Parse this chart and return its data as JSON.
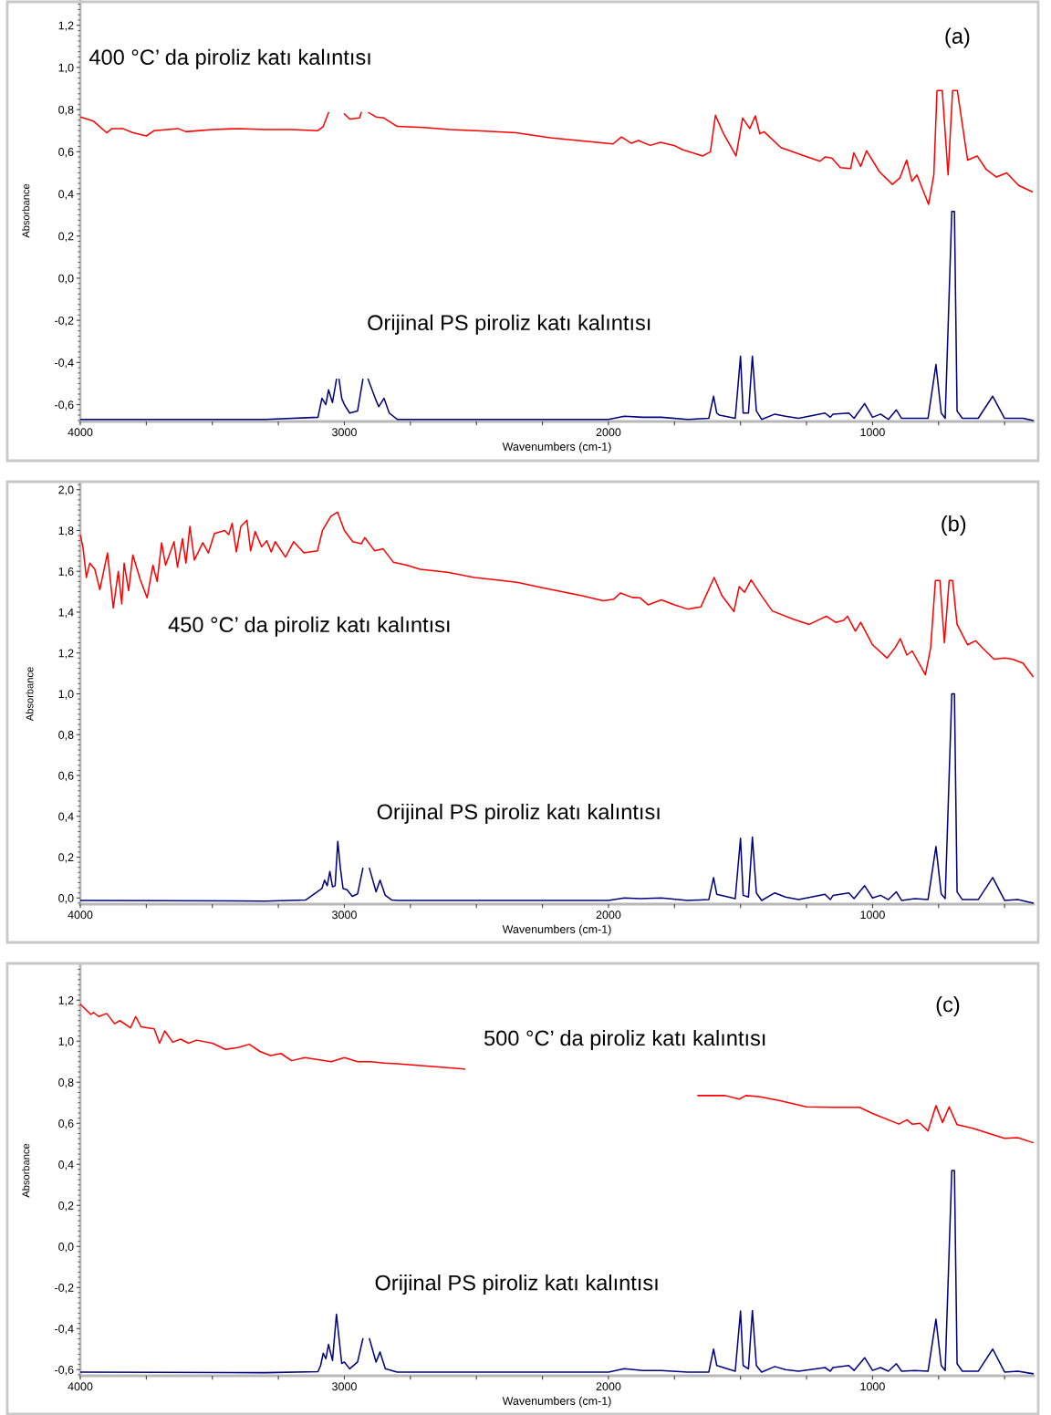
{
  "chart_data": [
    {
      "type": "line",
      "xlabel": "Wavenumbers (cm-1)",
      "ylabel": "Absorbance",
      "annotations": [
        "(a)"
      ],
      "xlim": [
        4000,
        390
      ],
      "ylim": [
        -0.68,
        1.32
      ],
      "xticks": [
        4000,
        {
          "value": 3750,
          "label": null
        },
        {
          "value": 3500,
          "label": null
        },
        {
          "value": 3250,
          "label": null
        },
        3000,
        {
          "value": 2750,
          "label": null
        },
        {
          "value": 2500,
          "label": null
        },
        {
          "value": 2250,
          "label": null
        },
        2000,
        {
          "value": 1750,
          "label": null
        },
        {
          "value": 1500,
          "label": null
        },
        {
          "value": 1250,
          "label": null
        },
        1000,
        {
          "value": 750,
          "label": null
        },
        {
          "value": 500,
          "label": null
        }
      ],
      "yticks": [
        {
          "value": -0.6,
          "label": "-0,6"
        },
        {
          "value": -0.4,
          "label": "-0,4"
        },
        {
          "value": -0.2,
          "label": "-0,2"
        },
        {
          "value": 0.0,
          "label": "0,0"
        },
        {
          "value": 0.2,
          "label": "0,2"
        },
        {
          "value": 0.4,
          "label": "0,4"
        },
        {
          "value": 0.6,
          "label": "0,6"
        },
        {
          "value": 0.8,
          "label": "0,8"
        },
        {
          "value": 1.0,
          "label": "1,0"
        },
        {
          "value": 1.2,
          "label": "1,2"
        }
      ],
      "series": [
        {
          "name": "400 °C’ da piroliz katı kalıntısı",
          "color": "#ff0000",
          "x": [
            4000,
            3950,
            3900,
            3880,
            3840,
            3800,
            3750,
            3720,
            3630,
            3600,
            3500,
            3400,
            3300,
            3200,
            3100,
            3080,
            3060,
            3040,
            3000,
            2980,
            2943,
            2936,
            2920,
            2908,
            2880,
            2850,
            2800,
            2700,
            2600,
            2500,
            2350,
            2221,
            1983,
            1951,
            1913,
            1887,
            1842,
            1803,
            1752,
            1720,
            1643,
            1614,
            1595,
            1566,
            1517,
            1492,
            1465,
            1444,
            1427,
            1411,
            1347,
            1257,
            1199,
            1180,
            1154,
            1122,
            1083,
            1071,
            1045,
            1023,
            974,
            925,
            897,
            871,
            851,
            832,
            788,
            768,
            756,
            736,
            714,
            697,
            679,
            640,
            604,
            569,
            531,
            492,
            447,
            396
          ],
          "values": [
            0.765,
            0.745,
            0.69,
            0.71,
            0.71,
            0.69,
            0.675,
            0.7,
            0.71,
            0.695,
            0.705,
            0.71,
            0.705,
            0.705,
            0.7,
            0.72,
            0.785,
            null,
            0.78,
            0.755,
            0.76,
            0.785,
            null,
            0.785,
            0.765,
            0.76,
            0.72,
            0.715,
            0.705,
            0.7,
            0.69,
            0.666,
            0.637,
            0.67,
            0.64,
            0.653,
            0.63,
            0.645,
            0.63,
            0.61,
            0.58,
            0.6,
            0.773,
            0.69,
            0.58,
            0.76,
            0.71,
            0.77,
            0.685,
            0.695,
            0.62,
            0.58,
            0.555,
            0.575,
            0.57,
            0.525,
            0.52,
            0.595,
            0.53,
            0.605,
            0.505,
            0.445,
            0.475,
            0.56,
            0.46,
            0.49,
            0.35,
            0.49,
            0.89,
            0.89,
            0.49,
            0.89,
            0.89,
            0.56,
            0.58,
            0.515,
            0.48,
            0.5,
            0.44,
            0.41
          ]
        },
        {
          "name": "Orijinal PS piroliz katı kalıntısı",
          "color": "#000080",
          "x": [
            4000,
            3300,
            3100,
            3085,
            3070,
            3060,
            3045,
            3030,
            3025,
            3020,
            3010,
            3000,
            2980,
            2950,
            2930,
            2920,
            2910,
            2880,
            2870,
            2850,
            2830,
            2800,
            2400,
            2000,
            1940,
            1870,
            1800,
            1700,
            1620,
            1602,
            1590,
            1580,
            1520,
            1500,
            1490,
            1470,
            1455,
            1440,
            1420,
            1370,
            1330,
            1280,
            1180,
            1160,
            1150,
            1090,
            1070,
            1030,
            1000,
            970,
            940,
            910,
            890,
            840,
            790,
            760,
            740,
            725,
            700,
            690,
            680,
            660,
            600,
            545,
            500,
            430,
            393
          ],
          "values": [
            -0.67,
            -0.67,
            -0.66,
            -0.57,
            -0.6,
            -0.53,
            -0.59,
            -0.48,
            null,
            -0.48,
            -0.57,
            -0.6,
            -0.64,
            -0.63,
            -0.48,
            null,
            -0.48,
            -0.58,
            -0.61,
            -0.57,
            -0.64,
            -0.67,
            -0.67,
            -0.67,
            -0.655,
            -0.66,
            -0.66,
            -0.67,
            -0.665,
            -0.56,
            -0.64,
            -0.65,
            -0.665,
            -0.37,
            -0.64,
            -0.64,
            -0.37,
            -0.63,
            -0.67,
            -0.645,
            -0.655,
            -0.665,
            -0.64,
            -0.66,
            -0.645,
            -0.64,
            -0.665,
            -0.595,
            -0.66,
            -0.645,
            -0.67,
            -0.625,
            -0.665,
            -0.665,
            -0.665,
            -0.41,
            -0.64,
            -0.665,
            0.317,
            0.317,
            -0.63,
            -0.665,
            -0.665,
            -0.56,
            -0.665,
            -0.665,
            -0.675
          ]
        }
      ]
    },
    {
      "type": "line",
      "xlabel": "Wavenumbers (cm-1)",
      "ylabel": "Absorbance",
      "annotations": [
        "(b)"
      ],
      "xlim": [
        4000,
        390
      ],
      "ylim": [
        -0.03,
        2.03
      ],
      "xticks": [
        4000,
        {
          "value": 3750,
          "label": null
        },
        {
          "value": 3500,
          "label": null
        },
        {
          "value": 3250,
          "label": null
        },
        3000,
        {
          "value": 2750,
          "label": null
        },
        {
          "value": 2500,
          "label": null
        },
        {
          "value": 2250,
          "label": null
        },
        2000,
        {
          "value": 1750,
          "label": null
        },
        {
          "value": 1500,
          "label": null
        },
        {
          "value": 1250,
          "label": null
        },
        1000,
        {
          "value": 750,
          "label": null
        },
        {
          "value": 500,
          "label": null
        }
      ],
      "yticks": [
        {
          "value": 0.0,
          "label": "0,0"
        },
        {
          "value": 0.2,
          "label": "0,2"
        },
        {
          "value": 0.4,
          "label": "0,4"
        },
        {
          "value": 0.6,
          "label": "0,6"
        },
        {
          "value": 0.8,
          "label": "0,8"
        },
        {
          "value": 1.0,
          "label": "1,0"
        },
        {
          "value": 1.2,
          "label": "1,2"
        },
        {
          "value": 1.4,
          "label": "1,4"
        },
        {
          "value": 1.6,
          "label": "1,6"
        },
        {
          "value": 1.8,
          "label": "1,8"
        },
        {
          "value": 2.0,
          "label": "2,0"
        }
      ],
      "series": [
        {
          "name": "450 °C’ da piroliz katı kalıntısı",
          "color": "#ff0000",
          "x": [
            4000,
            3990,
            3977,
            3964,
            3945,
            3926,
            3897,
            3875,
            3856,
            3843,
            3834,
            3817,
            3801,
            3773,
            3747,
            3725,
            3709,
            3692,
            3677,
            3645,
            3632,
            3613,
            3600,
            3585,
            3568,
            3536,
            3515,
            3492,
            3453,
            3438,
            3425,
            3409,
            3392,
            3369,
            3355,
            3338,
            3313,
            3294,
            3277,
            3262,
            3223,
            3192,
            3153,
            3102,
            3083,
            3051,
            3026,
            3000,
            2968,
            2936,
            2923,
            2885,
            2853,
            2815,
            2764,
            2713,
            2610,
            2508,
            2406,
            2342,
            2250,
            2100,
            2020,
            1980,
            1955,
            1910,
            1880,
            1850,
            1800,
            1750,
            1700,
            1650,
            1600,
            1570,
            1525,
            1505,
            1485,
            1460,
            1420,
            1380,
            1300,
            1240,
            1200,
            1175,
            1140,
            1110,
            1095,
            1065,
            1045,
            1000,
            945,
            915,
            895,
            870,
            850,
            800,
            780,
            762,
            745,
            728,
            710,
            697,
            680,
            640,
            610,
            580,
            540,
            500,
            470,
            430,
            393
          ],
          "values": [
            1.777,
            1.72,
            1.57,
            1.64,
            1.61,
            1.51,
            1.69,
            1.42,
            1.6,
            1.44,
            1.64,
            1.505,
            1.68,
            1.56,
            1.47,
            1.63,
            1.55,
            1.74,
            1.63,
            1.745,
            1.62,
            1.76,
            1.64,
            1.82,
            1.655,
            1.74,
            1.69,
            1.785,
            1.8,
            1.78,
            1.835,
            1.695,
            1.82,
            1.85,
            1.7,
            1.795,
            1.72,
            1.75,
            1.695,
            1.745,
            1.67,
            1.745,
            1.69,
            1.7,
            1.8,
            1.87,
            1.89,
            1.8,
            1.745,
            1.735,
            1.765,
            1.7,
            1.71,
            1.645,
            1.63,
            1.61,
            1.595,
            1.57,
            1.555,
            1.545,
            1.52,
            1.48,
            1.456,
            1.464,
            1.494,
            1.472,
            1.47,
            1.436,
            1.46,
            1.436,
            1.415,
            1.426,
            1.57,
            1.48,
            1.403,
            1.525,
            1.497,
            1.558,
            1.48,
            1.406,
            1.365,
            1.34,
            1.365,
            1.38,
            1.35,
            1.36,
            1.38,
            1.307,
            1.35,
            1.24,
            1.175,
            1.225,
            1.27,
            1.19,
            1.21,
            1.093,
            1.225,
            1.555,
            1.555,
            1.25,
            1.555,
            1.555,
            1.34,
            1.24,
            1.26,
            1.22,
            1.17,
            1.175,
            1.17,
            1.15,
            1.085
          ]
        },
        {
          "name": "Orijinal PS piroliz katı kalıntısı",
          "color": "#000080",
          "x": [
            4000,
            3300,
            3147,
            3085,
            3075,
            3065,
            3055,
            3045,
            3035,
            3025,
            3015,
            3005,
            2990,
            2970,
            2950,
            2930,
            2918,
            2905,
            2880,
            2865,
            2845,
            2820,
            2800,
            2000,
            1940,
            1880,
            1800,
            1700,
            1620,
            1602,
            1590,
            1520,
            1500,
            1490,
            1470,
            1455,
            1440,
            1420,
            1370,
            1330,
            1280,
            1180,
            1160,
            1150,
            1090,
            1070,
            1030,
            1000,
            970,
            940,
            910,
            890,
            840,
            790,
            760,
            740,
            725,
            700,
            690,
            680,
            660,
            600,
            545,
            500,
            450,
            393
          ],
          "values": [
            -0.012,
            -0.015,
            -0.01,
            0.046,
            0.087,
            0.06,
            0.13,
            0.055,
            0.06,
            0.277,
            0.145,
            0.046,
            0.04,
            0.008,
            0.02,
            0.145,
            null,
            0.145,
            0.03,
            0.087,
            0.013,
            -0.01,
            -0.012,
            -0.012,
            0.0,
            -0.003,
            0.0,
            -0.012,
            -0.008,
            0.1,
            0.018,
            -0.003,
            0.293,
            0.013,
            0.005,
            0.298,
            0.025,
            -0.012,
            0.025,
            0.005,
            -0.008,
            0.018,
            -0.008,
            0.012,
            0.025,
            -0.003,
            0.06,
            0.0,
            0.013,
            -0.008,
            0.03,
            -0.012,
            -0.003,
            -0.008,
            0.252,
            0.02,
            -0.003,
            1.0,
            1.0,
            0.03,
            -0.008,
            -0.008,
            0.1,
            -0.012,
            -0.008,
            -0.025
          ]
        }
      ]
    },
    {
      "type": "line",
      "xlabel": "Wavenumbers (cm-1)",
      "ylabel": "Absorbance",
      "annotations": [
        "(c)"
      ],
      "xlim": [
        4000,
        390
      ],
      "ylim": [
        -0.63,
        1.37
      ],
      "xticks": [
        4000,
        {
          "value": 3750,
          "label": null
        },
        {
          "value": 3500,
          "label": null
        },
        {
          "value": 3250,
          "label": null
        },
        3000,
        {
          "value": 2750,
          "label": null
        },
        {
          "value": 2500,
          "label": null
        },
        {
          "value": 2250,
          "label": null
        },
        2000,
        {
          "value": 1750,
          "label": null
        },
        {
          "value": 1500,
          "label": null
        },
        {
          "value": 1250,
          "label": null
        },
        1000,
        {
          "value": 750,
          "label": null
        },
        {
          "value": 500,
          "label": null
        }
      ],
      "yticks": [
        {
          "value": -0.6,
          "label": "-0,6"
        },
        {
          "value": -0.4,
          "label": "-0,4"
        },
        {
          "value": -0.2,
          "label": "-0,2"
        },
        {
          "value": 0.0,
          "label": "0,0"
        },
        {
          "value": 0.2,
          "label": "0,2"
        },
        {
          "value": 0.4,
          "label": "0,4"
        },
        {
          "value": 0.6,
          "label": "0,6"
        },
        {
          "value": 0.8,
          "label": "0,8"
        },
        {
          "value": 1.0,
          "label": "1,0"
        },
        {
          "value": 1.2,
          "label": "1,2"
        }
      ],
      "series": [
        {
          "name": "500 °C’ da piroliz katı kalıntısı",
          "color": "#ff0000",
          "x": [
            4000,
            3960,
            3950,
            3930,
            3900,
            3870,
            3850,
            3810,
            3790,
            3770,
            3720,
            3700,
            3680,
            3650,
            3620,
            3590,
            3560,
            3500,
            3450,
            3400,
            3360,
            3320,
            3280,
            3240,
            3200,
            3150,
            3100,
            3050,
            3000,
            2950,
            2900,
            2850,
            2800,
            2700,
            2600,
            2545,
            2200,
            1661,
            1597,
            1558,
            1505,
            1480,
            1430,
            1350,
            1250,
            1150,
            1050,
            1000,
            900,
            870,
            850,
            820,
            790,
            760,
            735,
            710,
            680,
            620,
            550,
            500,
            450,
            393
          ],
          "values": [
            1.18,
            1.13,
            1.14,
            1.12,
            1.135,
            1.085,
            1.1,
            1.065,
            1.12,
            1.07,
            1.06,
            0.99,
            1.05,
            0.995,
            1.01,
            0.99,
            1.005,
            0.99,
            0.96,
            0.97,
            0.985,
            0.95,
            0.93,
            0.94,
            0.905,
            0.92,
            0.91,
            0.9,
            0.92,
            0.9,
            0.9,
            0.893,
            0.89,
            0.88,
            0.87,
            0.864,
            null,
            0.735,
            0.735,
            0.735,
            0.718,
            0.735,
            0.73,
            0.71,
            0.68,
            0.678,
            0.678,
            0.648,
            0.596,
            0.617,
            0.596,
            0.6,
            0.563,
            0.686,
            0.604,
            0.68,
            0.593,
            0.576,
            0.547,
            0.527,
            0.53,
            0.506
          ]
        },
        {
          "name": "Orijinal PS piroliz katı kalıntısı",
          "color": "#000080",
          "x": [
            4000,
            3300,
            3100,
            3090,
            3080,
            3070,
            3060,
            3045,
            3030,
            3020,
            3010,
            3000,
            2980,
            2950,
            2930,
            2918,
            2905,
            2880,
            2865,
            2845,
            2800,
            2000,
            1940,
            1870,
            1800,
            1700,
            1620,
            1602,
            1590,
            1520,
            1500,
            1490,
            1470,
            1455,
            1440,
            1420,
            1370,
            1330,
            1280,
            1180,
            1160,
            1150,
            1090,
            1070,
            1030,
            1000,
            970,
            940,
            910,
            890,
            840,
            790,
            760,
            740,
            725,
            700,
            690,
            680,
            660,
            600,
            545,
            500,
            450,
            393
          ],
          "values": [
            -0.612,
            -0.615,
            -0.61,
            -0.58,
            -0.52,
            -0.547,
            -0.477,
            -0.555,
            -0.33,
            -0.45,
            -0.57,
            -0.563,
            -0.596,
            -0.563,
            -0.45,
            null,
            -0.45,
            -0.563,
            -0.514,
            -0.596,
            -0.612,
            -0.612,
            -0.596,
            -0.604,
            -0.604,
            -0.612,
            -0.612,
            -0.5,
            -0.58,
            -0.608,
            -0.315,
            -0.58,
            -0.596,
            -0.312,
            -0.58,
            -0.612,
            -0.585,
            -0.6,
            -0.608,
            -0.59,
            -0.608,
            -0.59,
            -0.58,
            -0.604,
            -0.542,
            -0.604,
            -0.59,
            -0.608,
            -0.571,
            -0.608,
            -0.604,
            -0.608,
            -0.354,
            -0.58,
            -0.604,
            0.37,
            0.37,
            -0.571,
            -0.608,
            -0.608,
            -0.5,
            -0.612,
            -0.608,
            -0.62
          ]
        }
      ]
    }
  ]
}
